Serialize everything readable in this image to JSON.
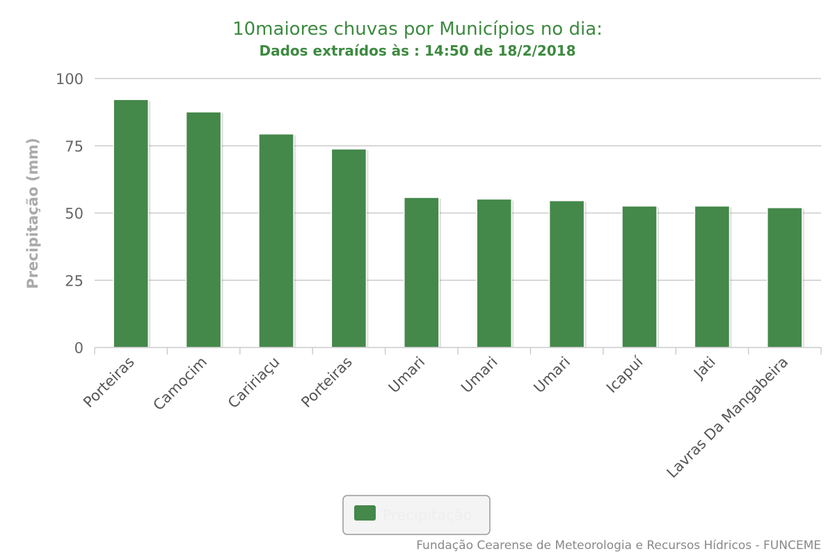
{
  "colors": {
    "bar": "#44884a",
    "title": "#3d8a40",
    "grid": "#cccccc",
    "axis_text": "#555555",
    "ylabel": "#aaaaaa",
    "legend_text": "#eeeeee",
    "credit": "#888888"
  },
  "chart_data": {
    "type": "bar",
    "title": "10maiores chuvas por Municípios no dia:",
    "subtitle": "Dados extraídos às : 14:50 de 18/2/2018",
    "xlabel": "",
    "ylabel": "Precipitação (mm)",
    "ylim": [
      0,
      100
    ],
    "yticks": [
      0,
      25,
      50,
      75,
      100
    ],
    "grid": true,
    "categories": [
      "Porteiras",
      "Camocim",
      "Caririaçu",
      "Porteiras",
      "Umari",
      "Umari",
      "Umari",
      "Icapuí",
      "Jati",
      "Lavras Da Mangabeira"
    ],
    "series": [
      {
        "name": "Precipitação",
        "values": [
          92.2,
          87.6,
          79.4,
          73.8,
          55.8,
          55.2,
          54.6,
          52.6,
          52.6,
          52.0
        ]
      }
    ],
    "legend_placement": "bottom-center"
  },
  "credit": "Fundação Cearense de Meteorologia e Recursos Hídricos - FUNCEME"
}
